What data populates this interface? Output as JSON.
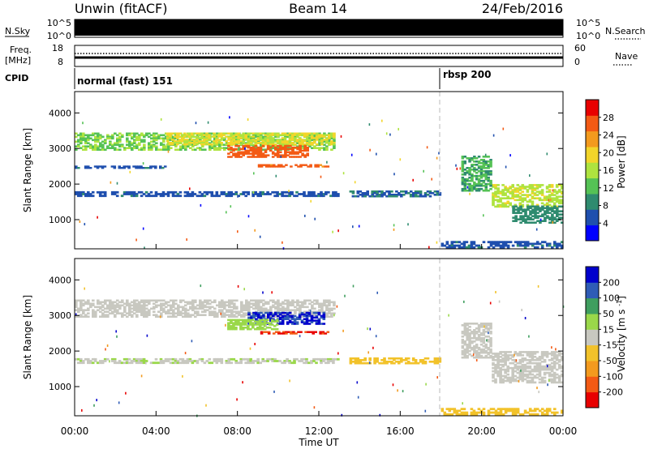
{
  "header": {
    "station": "Unwin (fitACF)",
    "beam": "Beam 14",
    "date": "24/Feb/2016"
  },
  "time_axis": {
    "label": "Time UT",
    "ticks": [
      "00:00",
      "04:00",
      "08:00",
      "12:00",
      "16:00",
      "20:00",
      "00:00"
    ],
    "range_hours": [
      0,
      24
    ]
  },
  "top_panels": {
    "nsky_label": "N.Sky",
    "nsky_ticks": [
      "10^5",
      "10^0"
    ],
    "nsearch_label": "N.Search",
    "nsearch_ticks": [
      "10^5",
      "10^0"
    ],
    "freq_label": "Freq.",
    "freq_unit": "[MHz]",
    "freq_ticks": [
      "18",
      "8"
    ],
    "nave_label": "Nave",
    "nave_ticks": [
      "60",
      "0"
    ],
    "cpid_label": "CPID",
    "cpid_segments": [
      {
        "name": "normal (fast) 151",
        "start_hour": 0
      },
      {
        "name": "rbsp 200",
        "start_hour": 18
      }
    ]
  },
  "chart_data": [
    {
      "type": "heatmap",
      "panel": "power",
      "xlabel": "Time UT",
      "ylabel": "Slant Range [km]",
      "yticks": [
        1000,
        2000,
        3000,
        4000
      ],
      "ylim": [
        180,
        4600
      ],
      "xlim": [
        0,
        24
      ],
      "colorbar": {
        "label": "Power [dB]",
        "ticks": [
          "28",
          "24",
          "20",
          "16",
          "12",
          "8",
          "4"
        ],
        "range": [
          0,
          32
        ],
        "colors": [
          "#0000ff",
          "#1f4fae",
          "#2f8b6f",
          "#55c255",
          "#aee33f",
          "#f2d52a",
          "#f39a1e",
          "#f35a14",
          "#e80000"
        ]
      },
      "regions": [
        {
          "t": [
            0.0,
            12.8
          ],
          "r": [
            2950,
            3450
          ],
          "level": 14
        },
        {
          "t": [
            4.5,
            12.8
          ],
          "r": [
            3100,
            3450
          ],
          "level": 18
        },
        {
          "t": [
            7.5,
            11.5
          ],
          "r": [
            2750,
            3100
          ],
          "level": 27
        },
        {
          "t": [
            9.0,
            12.5
          ],
          "r": [
            2480,
            2560
          ],
          "level": 26
        },
        {
          "t": [
            0.0,
            13.0
          ],
          "r": [
            1650,
            1800
          ],
          "level": 6
        },
        {
          "t": [
            0.0,
            4.5
          ],
          "r": [
            2440,
            2520
          ],
          "level": 6
        },
        {
          "t": [
            13.5,
            18.0
          ],
          "r": [
            1640,
            1820
          ],
          "level": 7
        },
        {
          "t": [
            18.0,
            24.0
          ],
          "r": [
            200,
            400
          ],
          "level": 6
        },
        {
          "t": [
            20.5,
            24.0
          ],
          "r": [
            1350,
            2000
          ],
          "level": 17
        },
        {
          "t": [
            21.5,
            24.0
          ],
          "r": [
            900,
            1400
          ],
          "level": 9
        },
        {
          "t": [
            19.0,
            20.5
          ],
          "r": [
            1800,
            2800
          ],
          "level": 11
        }
      ]
    },
    {
      "type": "heatmap",
      "panel": "velocity",
      "xlabel": "Time UT",
      "ylabel": "Slant Range [km]",
      "yticks": [
        1000,
        2000,
        3000,
        4000
      ],
      "ylim": [
        180,
        4600
      ],
      "xlim": [
        0,
        24
      ],
      "colorbar": {
        "label": "Velocity [m s^-1]",
        "ticks": [
          "200",
          "100",
          "50",
          "15",
          "-15",
          "-50",
          "-100",
          "-200"
        ],
        "range": [
          -250,
          250
        ],
        "colors": [
          "#e80000",
          "#f35a14",
          "#f39a1e",
          "#f2c22a",
          "#c8c8c0",
          "#9ad84a",
          "#3f9e5f",
          "#2f5cb6",
          "#0000cc"
        ]
      },
      "regions": [
        {
          "t": [
            0.0,
            12.8
          ],
          "r": [
            2950,
            3450
          ],
          "level": 0
        },
        {
          "t": [
            8.5,
            12.3
          ],
          "r": [
            2750,
            3100
          ],
          "level": 200
        },
        {
          "t": [
            7.5,
            10.0
          ],
          "r": [
            2600,
            2900
          ],
          "level": 50
        },
        {
          "t": [
            9.0,
            12.5
          ],
          "r": [
            2480,
            2560
          ],
          "level": -200
        },
        {
          "t": [
            0.0,
            13.0
          ],
          "r": [
            1650,
            1800
          ],
          "level": 20
        },
        {
          "t": [
            13.5,
            18.0
          ],
          "r": [
            1640,
            1820
          ],
          "level": -50
        },
        {
          "t": [
            18.0,
            24.0
          ],
          "r": [
            200,
            400
          ],
          "level": -50
        },
        {
          "t": [
            20.5,
            24.0
          ],
          "r": [
            1100,
            2000
          ],
          "level": 0
        },
        {
          "t": [
            19.0,
            20.5
          ],
          "r": [
            1800,
            2800
          ],
          "level": 0
        }
      ]
    }
  ]
}
